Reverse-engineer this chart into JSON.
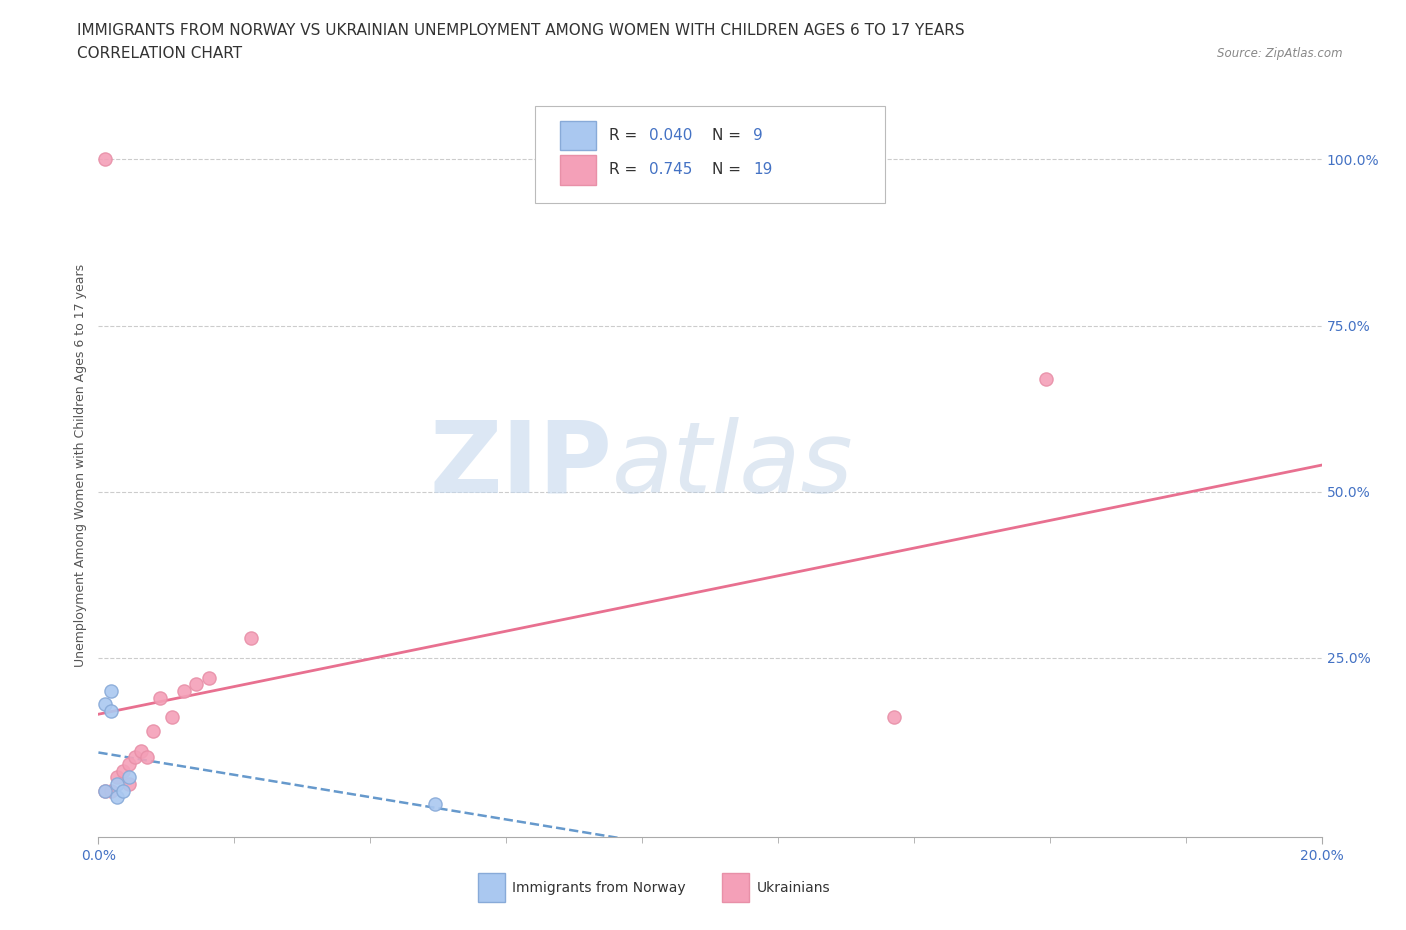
{
  "title": "IMMIGRANTS FROM NORWAY VS UKRAINIAN UNEMPLOYMENT AMONG WOMEN WITH CHILDREN AGES 6 TO 17 YEARS",
  "subtitle": "CORRELATION CHART",
  "source": "Source: ZipAtlas.com",
  "ylabel": "Unemployment Among Women with Children Ages 6 to 17 years",
  "xlim": [
    0.0,
    0.2
  ],
  "ylim": [
    -0.02,
    1.1
  ],
  "norway_x": [
    0.001,
    0.001,
    0.002,
    0.002,
    0.003,
    0.003,
    0.004,
    0.005,
    0.055
  ],
  "norway_y": [
    0.05,
    0.18,
    0.17,
    0.2,
    0.06,
    0.04,
    0.05,
    0.07,
    0.03
  ],
  "ukraine_x": [
    0.001,
    0.001,
    0.002,
    0.003,
    0.004,
    0.005,
    0.005,
    0.006,
    0.007,
    0.008,
    0.009,
    0.01,
    0.012,
    0.014,
    0.016,
    0.018,
    0.025,
    0.13,
    0.155
  ],
  "ukraine_y": [
    0.05,
    1.0,
    0.05,
    0.07,
    0.08,
    0.09,
    0.06,
    0.1,
    0.11,
    0.1,
    0.14,
    0.19,
    0.16,
    0.2,
    0.21,
    0.22,
    0.28,
    0.16,
    0.67
  ],
  "norway_R": 0.04,
  "norway_N": 9,
  "ukraine_R": 0.745,
  "ukraine_N": 19,
  "norway_color": "#aac8f0",
  "ukraine_color": "#f4a0b8",
  "norway_line_color": "#6699cc",
  "ukraine_line_color": "#e87090",
  "norway_marker_edge": "#88aad8",
  "ukraine_marker_edge": "#e890a8",
  "watermark_zip": "ZIP",
  "watermark_atlas": "atlas",
  "grid_color": "#cccccc",
  "background_color": "#ffffff",
  "title_fontsize": 11,
  "subtitle_fontsize": 11,
  "axis_label_fontsize": 9,
  "tick_fontsize": 10,
  "legend_fontsize": 11,
  "ytick_positions": [
    0.0,
    0.25,
    0.5,
    0.75,
    1.0
  ],
  "ytick_labels": [
    "",
    "25.0%",
    "50.0%",
    "75.0%",
    "100.0%"
  ],
  "xtick_positions": [
    0.0,
    0.2
  ],
  "xtick_labels": [
    "0.0%",
    "20.0%"
  ]
}
